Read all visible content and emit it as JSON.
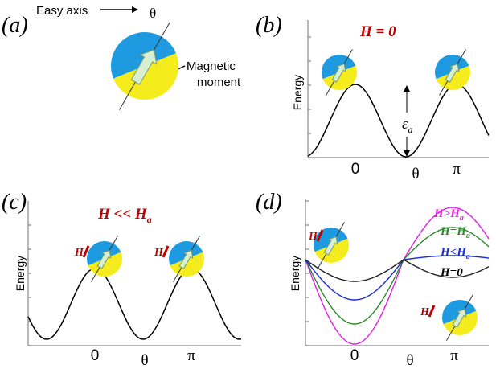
{
  "panels": {
    "a": {
      "label": "(a)",
      "easy_axis": "Easy axis",
      "theta": "θ",
      "moment": [
        "Magnetic",
        "moment"
      ]
    },
    "b": {
      "label": "(b)",
      "field": "H = 0",
      "ylabel": "Energy",
      "barrier": {
        "symbol": "ε",
        "sub": "a"
      },
      "xticks": [
        "0",
        "θ",
        "π"
      ]
    },
    "c": {
      "label": "(c)",
      "field": {
        "main": "H << H",
        "sub": "a"
      },
      "ylabel": "Energy",
      "field_icons": [
        "H",
        "H"
      ],
      "xticks": [
        "0",
        "θ",
        "π"
      ]
    },
    "d": {
      "label": "(d)",
      "ylabel": "Energy",
      "field_icons": [
        "H",
        "H"
      ],
      "xticks": [
        "0",
        "θ",
        "π"
      ],
      "curves": [
        {
          "main": "H>H",
          "sub": "a"
        },
        {
          "main": "H=H",
          "sub": "a"
        },
        {
          "main": "H<H",
          "sub": "a"
        },
        {
          "main": "H=0"
        }
      ]
    }
  }
}
